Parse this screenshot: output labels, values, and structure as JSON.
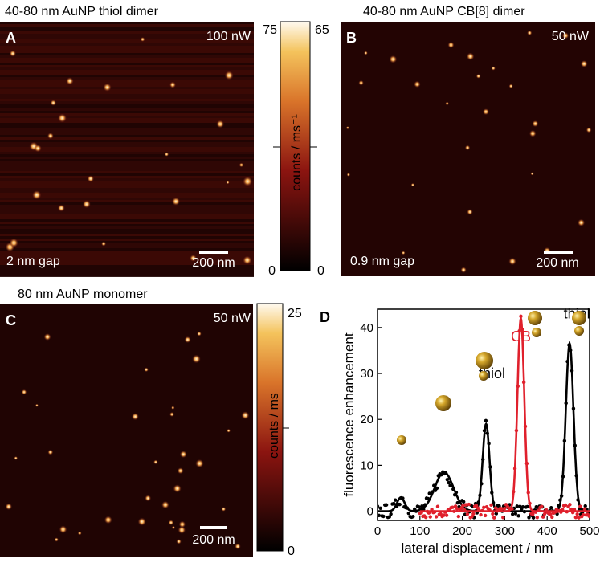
{
  "panels": {
    "a": {
      "letter": "A",
      "title": "40-80 nm AuNP thiol dimer",
      "power": "100  nW",
      "gap": "2 nm gap",
      "scale": "200 nm"
    },
    "b": {
      "letter": "B",
      "title": "40-80 nm AuNP CB[8] dimer",
      "power": "50 nW",
      "gap": "0.9 nm gap",
      "scale": "200 nm"
    },
    "c": {
      "letter": "C",
      "title": "80 nm AuNP monomer",
      "power": "50  nW",
      "scale": "200 nm"
    },
    "d": {
      "letter": "D"
    }
  },
  "colorbars": {
    "top": {
      "label": "counts / ms⁻¹",
      "left_max": "75",
      "right_max": "65",
      "left_min": "0",
      "right_min": "0"
    },
    "bottom": {
      "label": "counts / ms",
      "max": "25",
      "min": "0"
    }
  },
  "colors": {
    "thiol": "#000000",
    "cb": "#e0202c",
    "gold": "#c9a227"
  },
  "chart_data": {
    "type": "line",
    "xlabel": "lateral displacement / nm",
    "ylabel": "fluorescence enhancement",
    "xlim": [
      0,
      500
    ],
    "ylim": [
      -2,
      44
    ],
    "xticks": [
      0,
      100,
      200,
      300,
      400,
      500
    ],
    "yticks": [
      0,
      10,
      20,
      30,
      40
    ],
    "annotations": [
      {
        "text": "thiol",
        "x": 270,
        "y": 29,
        "color": "#000000"
      },
      {
        "text": "CB",
        "x": 338,
        "y": 37,
        "color": "#e0202c"
      },
      {
        "text": "thiol",
        "x": 470,
        "y": 42,
        "color": "#000000"
      }
    ],
    "series": [
      {
        "name": "thiol",
        "color": "#000000",
        "peaks": [
          {
            "center": 55,
            "height": 3,
            "sigma": 9
          },
          {
            "center": 157,
            "height": 8.5,
            "sigma": 22
          },
          {
            "center": 256,
            "height": 19,
            "sigma": 8
          },
          {
            "center": 453,
            "height": 36.5,
            "sigma": 9
          }
        ]
      },
      {
        "name": "CB",
        "color": "#e0202c",
        "peaks": [
          {
            "center": 338,
            "height": 42,
            "sigma": 8
          }
        ]
      }
    ]
  }
}
